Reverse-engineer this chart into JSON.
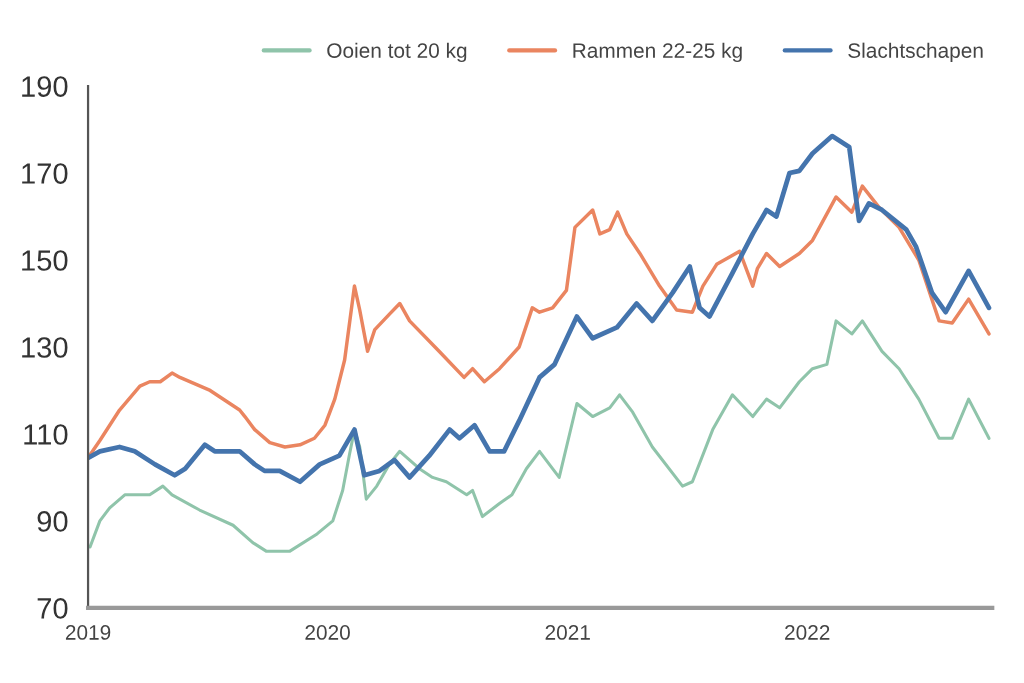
{
  "chart_data": {
    "type": "line",
    "series": [
      {
        "name": "Ooien tot 20 kg",
        "color": "#8fc4aa",
        "x": [
          "2019-01-04",
          "2019-01-19",
          "2019-02-03",
          "2019-02-26",
          "2019-03-10",
          "2019-04-05",
          "2019-04-25",
          "2019-05-09",
          "2019-06-20",
          "2019-08-10",
          "2019-09-09",
          "2019-09-30",
          "2019-11-04",
          "2019-12-16",
          "2020-01-09",
          "2020-01-24",
          "2020-02-03",
          "2020-02-11",
          "2020-02-19",
          "2020-02-29",
          "2020-03-16",
          "2020-04-04",
          "2020-04-20",
          "2020-05-20",
          "2020-06-09",
          "2020-06-30",
          "2020-07-31",
          "2020-08-09",
          "2020-08-24",
          "2020-09-19",
          "2020-10-08",
          "2020-10-30",
          "2020-11-19",
          "2020-12-19",
          "2021-01-15",
          "2021-02-08",
          "2021-03-06",
          "2021-03-21",
          "2021-04-10",
          "2021-05-10",
          "2021-06-25",
          "2021-07-10",
          "2021-08-10",
          "2021-09-09",
          "2021-10-10",
          "2021-10-31",
          "2021-11-20",
          "2021-12-20",
          "2022-01-09",
          "2022-01-31",
          "2022-02-14",
          "2022-03-10",
          "2022-03-26",
          "2022-04-25",
          "2022-05-21",
          "2022-06-20",
          "2022-07-21",
          "2022-08-10",
          "2022-09-04",
          "2022-10-05"
        ],
        "values": [
          84,
          90,
          93,
          96,
          96,
          96,
          98,
          96,
          92.5,
          89,
          85,
          83,
          83,
          87,
          90,
          97,
          105,
          111,
          107,
          95,
          98,
          103,
          106,
          102,
          100,
          99,
          96,
          97,
          91,
          94,
          96,
          102,
          106,
          100,
          117,
          114,
          116,
          119,
          115,
          107,
          98,
          99,
          111,
          119,
          114,
          118,
          116,
          122,
          125,
          126,
          136,
          133,
          136,
          129,
          125,
          118,
          109,
          109,
          118,
          109
        ]
      },
      {
        "name": "Rammen 22-25 kg",
        "color": "#ea8560",
        "x": [
          "2019-01-01",
          "2019-01-19",
          "2019-02-18",
          "2019-03-21",
          "2019-04-05",
          "2019-04-21",
          "2019-05-09",
          "2019-05-21",
          "2019-07-06",
          "2019-08-20",
          "2019-08-28",
          "2019-09-12",
          "2019-10-05",
          "2019-10-28",
          "2019-11-20",
          "2019-12-12",
          "2019-12-28",
          "2020-01-12",
          "2020-01-27",
          "2020-02-11",
          "2020-02-19",
          "2020-03-02",
          "2020-03-13",
          "2020-04-04",
          "2020-04-20",
          "2020-05-05",
          "2020-06-19",
          "2020-07-27",
          "2020-08-09",
          "2020-08-27",
          "2020-09-19",
          "2020-10-19",
          "2020-11-08",
          "2020-11-19",
          "2020-12-09",
          "2020-12-30",
          "2021-01-12",
          "2021-02-08",
          "2021-02-19",
          "2021-03-06",
          "2021-03-18",
          "2021-04-01",
          "2021-04-21",
          "2021-05-21",
          "2021-06-16",
          "2021-07-10",
          "2021-07-26",
          "2021-08-16",
          "2021-09-20",
          "2021-10-10",
          "2021-10-17",
          "2021-10-31",
          "2021-11-20",
          "2021-12-20",
          "2022-01-09",
          "2022-02-14",
          "2022-03-10",
          "2022-03-26",
          "2022-04-21",
          "2022-05-21",
          "2022-06-20",
          "2022-07-21",
          "2022-08-10",
          "2022-09-04",
          "2022-10-05"
        ],
        "values": [
          104.5,
          108.5,
          115.5,
          121,
          122,
          122,
          124,
          123,
          120,
          115.5,
          114,
          111,
          108,
          107,
          107.5,
          109,
          112,
          118,
          127,
          144,
          138.5,
          129,
          134,
          137.5,
          140,
          136,
          129,
          123,
          125,
          122,
          125,
          130,
          139,
          138,
          139,
          143,
          157.5,
          161.5,
          156,
          157,
          161,
          156,
          151.5,
          144,
          138.5,
          138,
          144,
          149,
          152,
          144,
          148,
          151.5,
          148.5,
          151.5,
          154.5,
          164.5,
          161,
          167,
          162,
          157.5,
          150,
          136,
          135.5,
          141,
          133
        ]
      },
      {
        "name": "Slachtschapen",
        "color": "#4474ad",
        "x": [
          "2019-01-01",
          "2019-01-19",
          "2019-02-18",
          "2019-03-13",
          "2019-04-13",
          "2019-05-13",
          "2019-05-29",
          "2019-06-28",
          "2019-07-13",
          "2019-08-20",
          "2019-09-12",
          "2019-09-27",
          "2019-10-20",
          "2019-11-20",
          "2019-12-20",
          "2020-01-19",
          "2020-02-11",
          "2020-02-26",
          "2020-03-20",
          "2020-04-12",
          "2020-05-05",
          "2020-06-04",
          "2020-07-05",
          "2020-07-20",
          "2020-08-12",
          "2020-09-04",
          "2020-09-26",
          "2020-10-19",
          "2020-11-19",
          "2020-12-12",
          "2021-01-15",
          "2021-02-08",
          "2021-03-17",
          "2021-04-16",
          "2021-05-10",
          "2021-06-10",
          "2021-07-06",
          "2021-07-21",
          "2021-08-05",
          "2021-09-09",
          "2021-10-10",
          "2021-10-31",
          "2021-11-15",
          "2021-12-05",
          "2021-12-20",
          "2022-01-09",
          "2022-02-08",
          "2022-03-06",
          "2022-03-21",
          "2022-04-05",
          "2022-04-25",
          "2022-06-01",
          "2022-06-16",
          "2022-07-10",
          "2022-07-31",
          "2022-09-04",
          "2022-10-05"
        ],
        "values": [
          104.5,
          106,
          107,
          106,
          103,
          100.5,
          102,
          107.5,
          106,
          106,
          103,
          101.5,
          101.5,
          99,
          103,
          105,
          111,
          100.5,
          101.5,
          104,
          100,
          105,
          111,
          109,
          112,
          106,
          106,
          113,
          123,
          126,
          137,
          132,
          134.5,
          140,
          136,
          142.5,
          148.5,
          139,
          137,
          147,
          156,
          161.5,
          160,
          170,
          170.5,
          174.5,
          178.5,
          176,
          159,
          163,
          161.5,
          157,
          153,
          142.5,
          138,
          147.5,
          139
        ]
      }
    ],
    "xlim": [
      "2019-01-01",
      "2022-10-10"
    ],
    "xticks": [
      {
        "value": "2019-01-01",
        "label": "2019"
      },
      {
        "value": "2020-01-01",
        "label": "2020"
      },
      {
        "value": "2021-01-01",
        "label": "2021"
      },
      {
        "value": "2022-01-01",
        "label": "2022"
      }
    ],
    "ylim": [
      70,
      190
    ],
    "yticks": [
      70,
      90,
      110,
      130,
      150,
      170,
      190
    ],
    "legend": "top right"
  }
}
